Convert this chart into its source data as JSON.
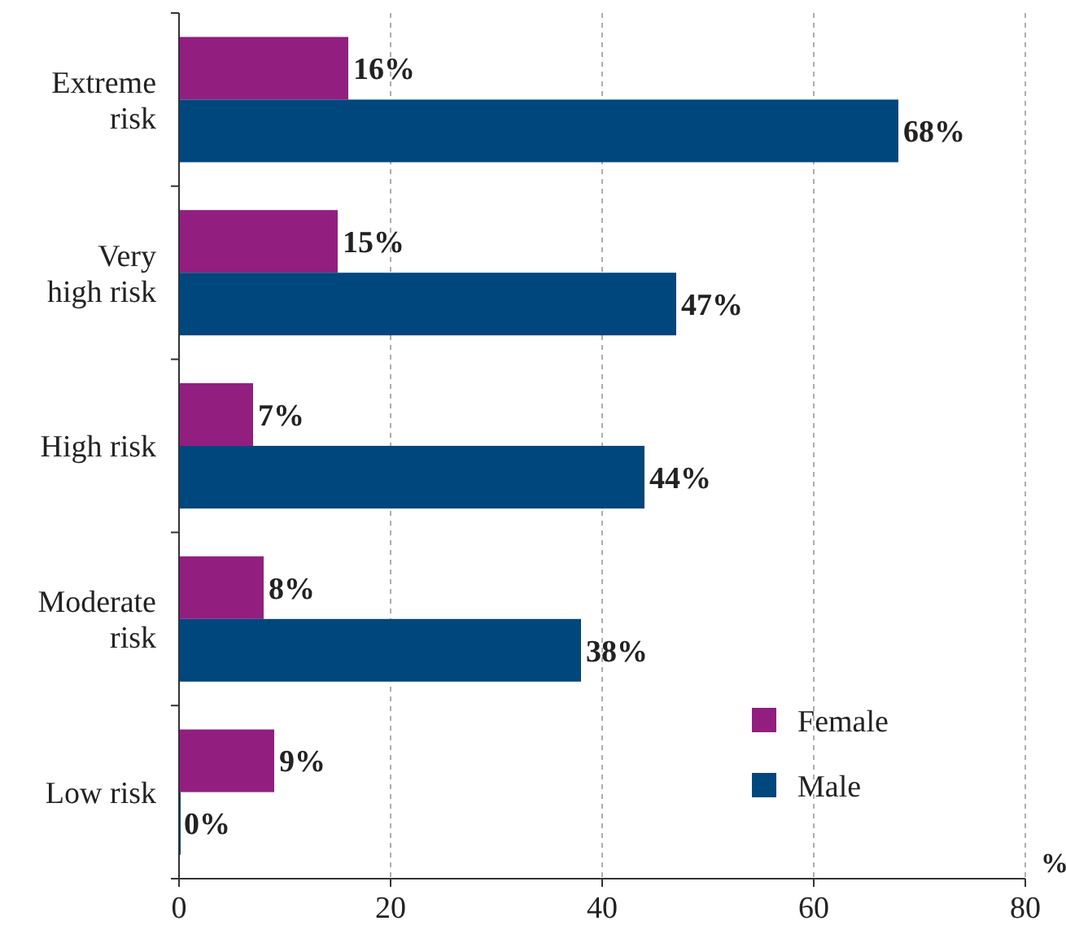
{
  "chart_data": {
    "type": "bar",
    "orientation": "horizontal",
    "categories": [
      "Extreme risk",
      "Very high risk",
      "High risk",
      "Moderate risk",
      "Low risk"
    ],
    "series": [
      {
        "name": "Female",
        "color": "#921f80",
        "values": [
          16,
          15,
          7,
          8,
          9
        ],
        "value_labels": [
          "16%",
          "15%",
          "7%",
          "8%",
          "9%"
        ]
      },
      {
        "name": "Male",
        "color": "#00477d",
        "values": [
          68,
          47,
          44,
          38,
          0
        ],
        "value_labels": [
          "68%",
          "47%",
          "44%",
          "38%",
          "0%"
        ]
      }
    ],
    "xlabel": "%",
    "xlim": [
      0,
      80
    ],
    "xticks": [
      0,
      20,
      40,
      60,
      80
    ],
    "grid": "x",
    "legend": "bottom right"
  }
}
